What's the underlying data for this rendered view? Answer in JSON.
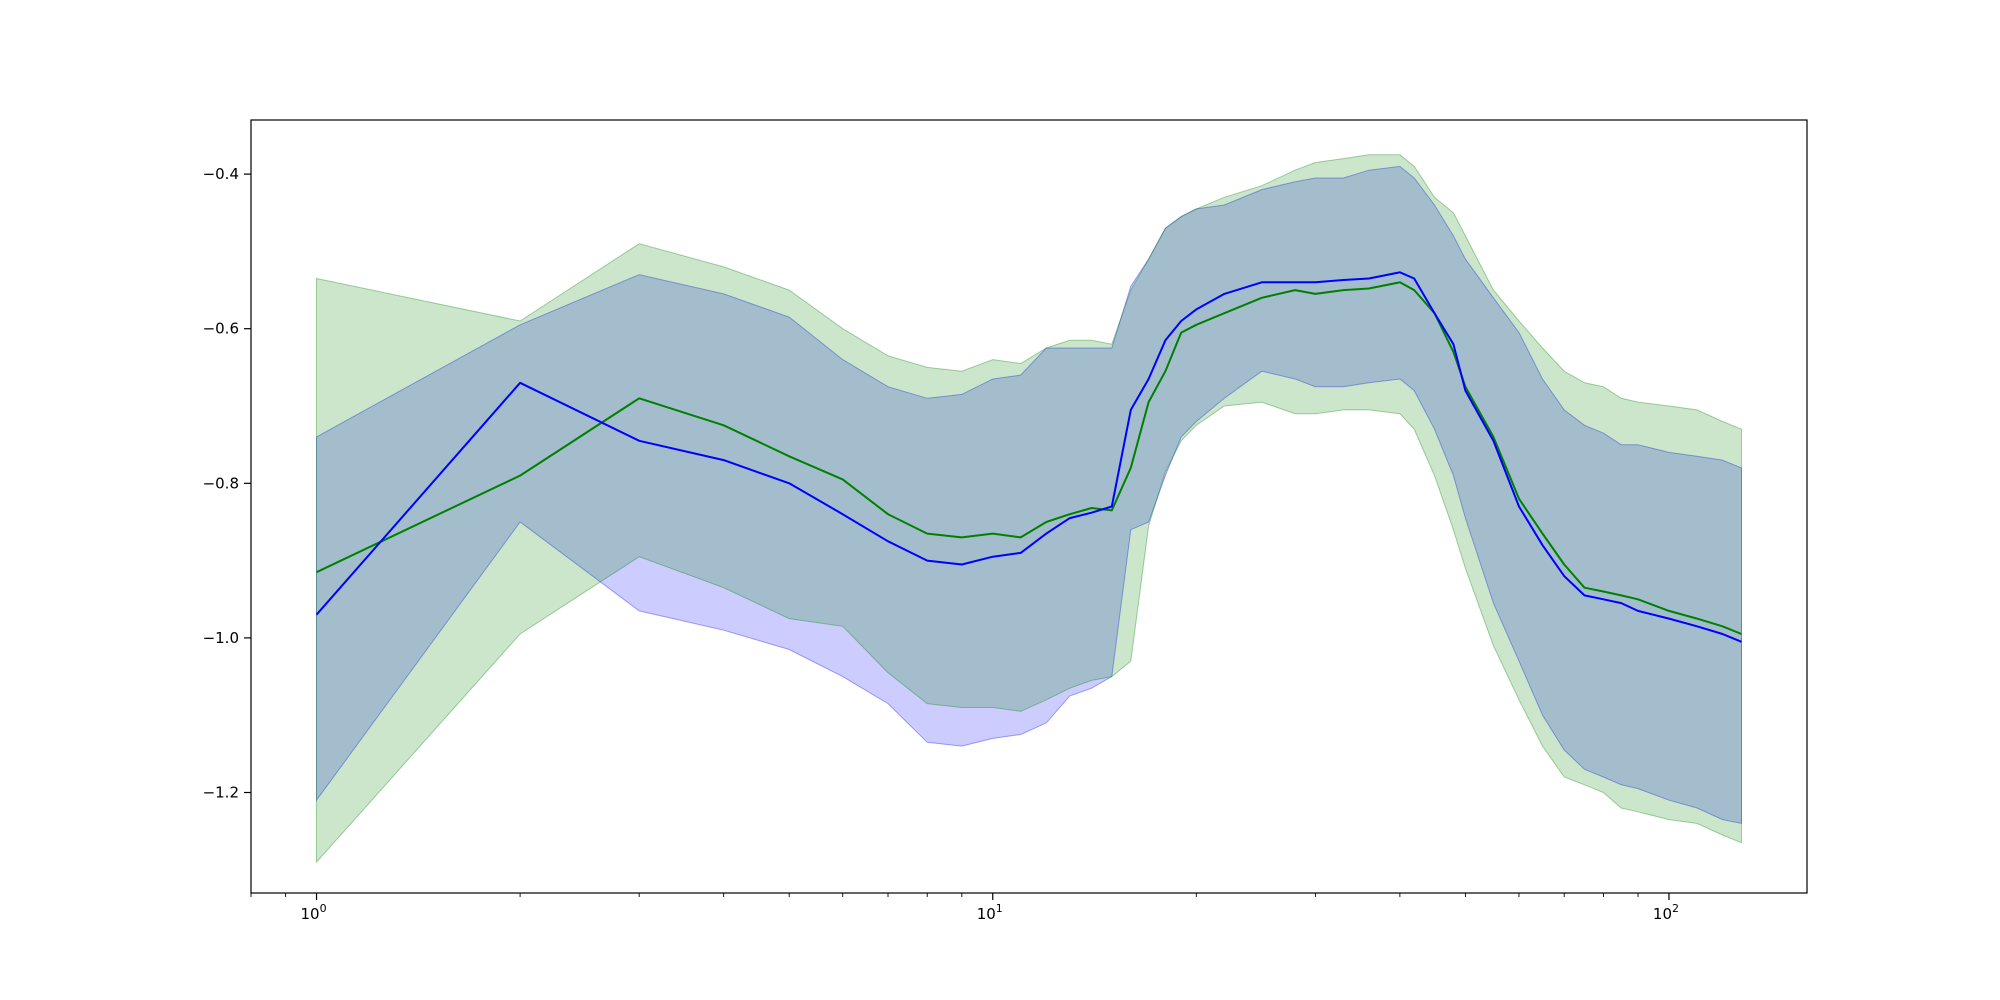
{
  "chart_data": {
    "type": "area",
    "title": "",
    "xlabel": "",
    "ylabel": "",
    "xscale": "log",
    "xlim": [
      0.8,
      160
    ],
    "ylim": [
      -1.33,
      -0.33
    ],
    "grid": false,
    "legend": "none",
    "x_ticks": [
      {
        "value": 1,
        "base": "10",
        "exp": "0"
      },
      {
        "value": 10,
        "base": "10",
        "exp": "1"
      },
      {
        "value": 100,
        "base": "10",
        "exp": "2"
      }
    ],
    "y_ticks": [
      {
        "value": -0.4,
        "label": "−0.4"
      },
      {
        "value": -0.6,
        "label": "−0.6"
      },
      {
        "value": -0.8,
        "label": "−0.8"
      },
      {
        "value": -1.0,
        "label": "−1.0"
      },
      {
        "value": -1.2,
        "label": "−1.2"
      }
    ],
    "series": [
      {
        "color": "#0000ff",
        "band_color": "#0000ff",
        "band_opacity": 0.2,
        "x": [
          1,
          2,
          3,
          4,
          5,
          6,
          7,
          8,
          9,
          10,
          11,
          12,
          13,
          14,
          15,
          16,
          17,
          18,
          19,
          20,
          22,
          25,
          28,
          30,
          33,
          36,
          40,
          42,
          45,
          48,
          50,
          55,
          60,
          65,
          70,
          75,
          80,
          85,
          90,
          100,
          110,
          120,
          128
        ],
        "y": [
          -0.97,
          -0.67,
          -0.745,
          -0.77,
          -0.8,
          -0.84,
          -0.875,
          -0.9,
          -0.905,
          -0.895,
          -0.89,
          -0.865,
          -0.845,
          -0.838,
          -0.83,
          -0.705,
          -0.665,
          -0.615,
          -0.59,
          -0.575,
          -0.555,
          -0.54,
          -0.54,
          -0.54,
          -0.537,
          -0.535,
          -0.527,
          -0.535,
          -0.58,
          -0.62,
          -0.68,
          -0.745,
          -0.83,
          -0.88,
          -0.92,
          -0.945,
          -0.95,
          -0.955,
          -0.965,
          -0.975,
          -0.985,
          -0.995,
          -1.005
        ],
        "lower": [
          -1.21,
          -0.85,
          -0.965,
          -0.99,
          -1.015,
          -1.05,
          -1.085,
          -1.135,
          -1.14,
          -1.13,
          -1.125,
          -1.11,
          -1.075,
          -1.065,
          -1.05,
          -0.86,
          -0.85,
          -0.79,
          -0.74,
          -0.72,
          -0.69,
          -0.655,
          -0.665,
          -0.675,
          -0.675,
          -0.67,
          -0.665,
          -0.68,
          -0.73,
          -0.79,
          -0.845,
          -0.955,
          -1.03,
          -1.1,
          -1.145,
          -1.17,
          -1.18,
          -1.19,
          -1.195,
          -1.21,
          -1.22,
          -1.235,
          -1.24
        ],
        "upper": [
          -0.74,
          -0.595,
          -0.53,
          -0.555,
          -0.585,
          -0.64,
          -0.675,
          -0.69,
          -0.685,
          -0.665,
          -0.66,
          -0.625,
          -0.625,
          -0.625,
          -0.625,
          -0.545,
          -0.51,
          -0.47,
          -0.455,
          -0.445,
          -0.44,
          -0.42,
          -0.41,
          -0.405,
          -0.405,
          -0.395,
          -0.39,
          -0.405,
          -0.44,
          -0.48,
          -0.51,
          -0.56,
          -0.605,
          -0.665,
          -0.705,
          -0.725,
          -0.735,
          -0.75,
          -0.75,
          -0.76,
          -0.765,
          -0.77,
          -0.78
        ]
      },
      {
        "color": "#008000",
        "band_color": "#008000",
        "band_opacity": 0.2,
        "x": [
          1,
          2,
          3,
          4,
          5,
          6,
          7,
          8,
          9,
          10,
          11,
          12,
          13,
          14,
          15,
          16,
          17,
          18,
          19,
          20,
          22,
          25,
          28,
          30,
          33,
          36,
          40,
          42,
          45,
          48,
          50,
          55,
          60,
          65,
          70,
          75,
          80,
          85,
          90,
          100,
          110,
          120,
          128
        ],
        "y": [
          -0.915,
          -0.79,
          -0.69,
          -0.725,
          -0.765,
          -0.795,
          -0.84,
          -0.865,
          -0.87,
          -0.865,
          -0.87,
          -0.85,
          -0.84,
          -0.832,
          -0.835,
          -0.78,
          -0.695,
          -0.655,
          -0.605,
          -0.595,
          -0.58,
          -0.56,
          -0.55,
          -0.555,
          -0.55,
          -0.548,
          -0.54,
          -0.55,
          -0.58,
          -0.63,
          -0.675,
          -0.74,
          -0.82,
          -0.865,
          -0.905,
          -0.935,
          -0.94,
          -0.945,
          -0.95,
          -0.965,
          -0.975,
          -0.985,
          -0.995
        ],
        "lower": [
          -1.29,
          -0.995,
          -0.895,
          -0.935,
          -0.975,
          -0.985,
          -1.045,
          -1.085,
          -1.09,
          -1.09,
          -1.095,
          -1.08,
          -1.065,
          -1.055,
          -1.05,
          -1.03,
          -0.855,
          -0.785,
          -0.745,
          -0.725,
          -0.7,
          -0.695,
          -0.71,
          -0.71,
          -0.705,
          -0.705,
          -0.71,
          -0.73,
          -0.79,
          -0.86,
          -0.91,
          -1.01,
          -1.08,
          -1.14,
          -1.18,
          -1.19,
          -1.2,
          -1.22,
          -1.225,
          -1.235,
          -1.24,
          -1.255,
          -1.265
        ],
        "upper": [
          -0.535,
          -0.59,
          -0.49,
          -0.52,
          -0.55,
          -0.6,
          -0.635,
          -0.65,
          -0.655,
          -0.64,
          -0.645,
          -0.625,
          -0.615,
          -0.615,
          -0.62,
          -0.55,
          -0.51,
          -0.47,
          -0.455,
          -0.445,
          -0.43,
          -0.415,
          -0.395,
          -0.385,
          -0.38,
          -0.375,
          -0.375,
          -0.39,
          -0.43,
          -0.45,
          -0.48,
          -0.55,
          -0.59,
          -0.625,
          -0.655,
          -0.67,
          -0.675,
          -0.69,
          -0.695,
          -0.7,
          -0.705,
          -0.72,
          -0.73
        ]
      }
    ]
  }
}
